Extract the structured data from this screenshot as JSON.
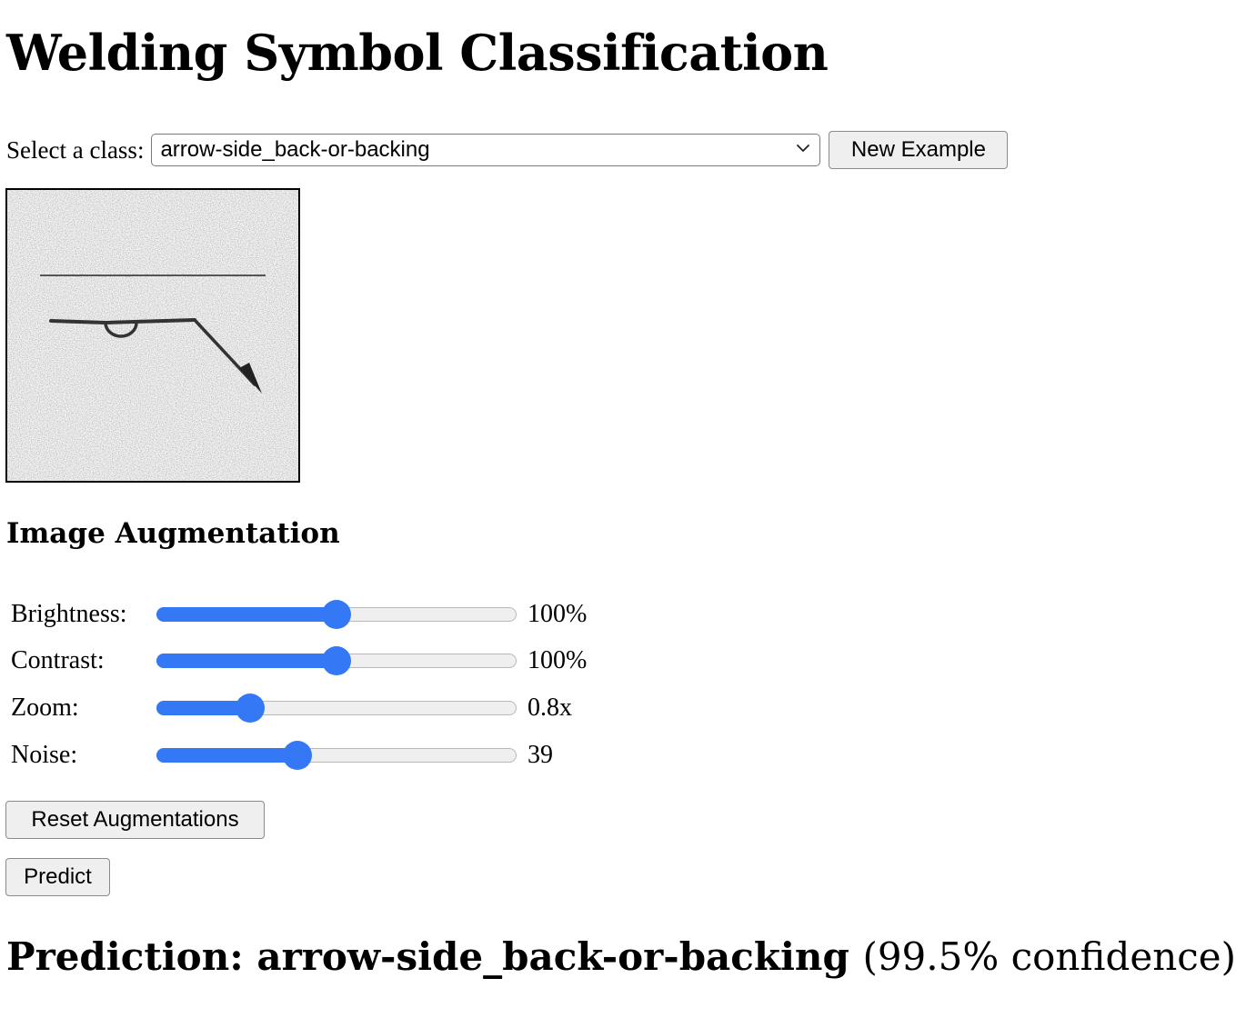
{
  "page": {
    "title": "Welding Symbol Classification"
  },
  "class_selector": {
    "label": "Select a class:",
    "selected": "arrow-side_back-or-backing",
    "new_example_label": "New Example"
  },
  "preview_image": {
    "description_icon": "welding-symbol-image"
  },
  "augmentation": {
    "heading": "Image Augmentation",
    "sliders": [
      {
        "label": "Brightness:",
        "value_text": "100%",
        "fraction": 0.5
      },
      {
        "label": "Contrast:",
        "value_text": "100%",
        "fraction": 0.5
      },
      {
        "label": "Zoom:",
        "value_text": "0.8x",
        "fraction": 0.26
      },
      {
        "label": "Noise:",
        "value_text": "39",
        "fraction": 0.39
      }
    ],
    "reset_label": "Reset Augmentations"
  },
  "predict": {
    "button_label": "Predict",
    "prefix": "Prediction:",
    "class_name": "arrow-side_back-or-backing",
    "confidence_text": "(99.5% confidence)"
  },
  "colors": {
    "accent": "#3478f6"
  }
}
